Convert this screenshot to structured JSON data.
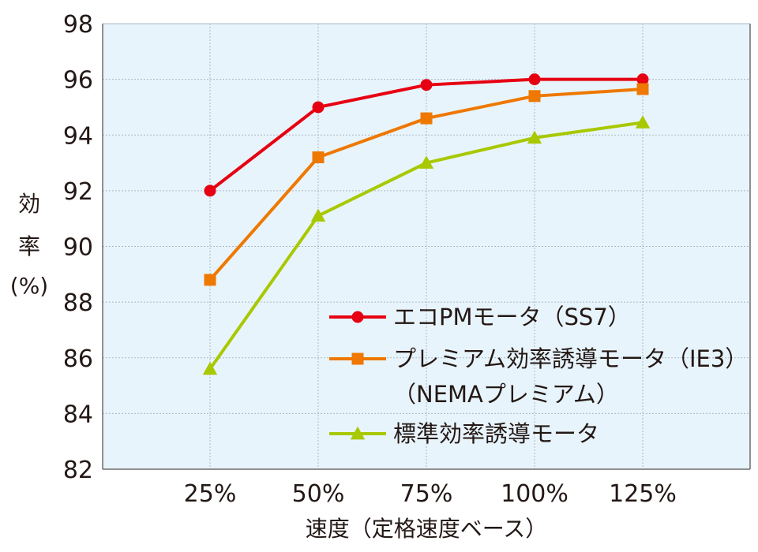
{
  "chart_data": {
    "type": "line",
    "title": "",
    "xlabel": "速度（定格速度ベース）",
    "ylabel": [
      "効",
      "率",
      "(%)"
    ],
    "categories": [
      "25%",
      "50%",
      "75%",
      "100%",
      "125%"
    ],
    "ylim": [
      82,
      98
    ],
    "yticks": [
      82,
      84,
      86,
      88,
      90,
      92,
      94,
      96,
      98
    ],
    "grid": true,
    "legend_position": "bottom-right",
    "colors": {
      "plot_bg": "#e8f4fb",
      "grid": "#a9b9c6",
      "axis": "#6d6d6d"
    },
    "series": [
      {
        "name": [
          "エコPMモータ（SS7）"
        ],
        "marker": "circle",
        "color": "#e60012",
        "values": [
          92.0,
          95.0,
          95.8,
          96.0,
          96.0
        ]
      },
      {
        "name": [
          "プレミアム効率誘導モータ（IE3）",
          "（NEMAプレミアム）"
        ],
        "marker": "square",
        "color": "#ee7800",
        "values": [
          88.8,
          93.2,
          94.6,
          95.4,
          95.65
        ]
      },
      {
        "name": [
          "標準効率誘導モータ"
        ],
        "marker": "triangle",
        "color": "#a8c800",
        "values": [
          85.6,
          91.1,
          93.0,
          93.9,
          94.45
        ]
      }
    ]
  }
}
